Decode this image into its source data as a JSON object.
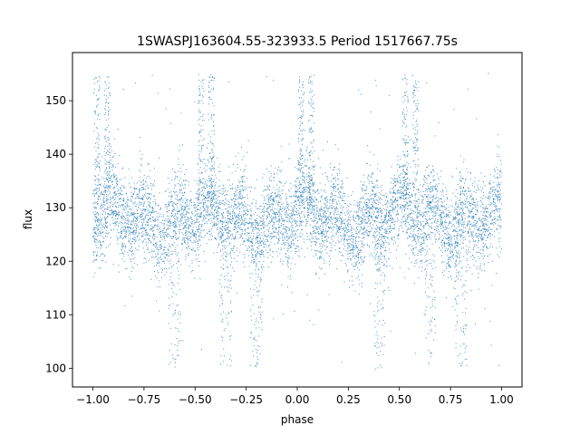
{
  "chart_data": {
    "type": "scatter",
    "title": "1SWASPJ163604.55-323933.5 Period 1517667.75s",
    "xlabel": "phase",
    "ylabel": "flux",
    "xlim": [
      -1.1,
      1.1
    ],
    "ylim": [
      96.5,
      159
    ],
    "grid": false,
    "legend": "none",
    "marker_color": "#1f77b4",
    "x_ticks": [
      -1.0,
      -0.75,
      -0.5,
      -0.25,
      0.0,
      0.25,
      0.5,
      0.75,
      1.0
    ],
    "x_tick_labels": [
      "−1.00",
      "−0.75",
      "−0.50",
      "−0.25",
      "0.00",
      "0.25",
      "0.50",
      "0.75",
      "1.00"
    ],
    "y_ticks": [
      100,
      110,
      120,
      130,
      140,
      150
    ],
    "y_tick_labels": [
      "100",
      "110",
      "120",
      "130",
      "140",
      "150"
    ],
    "series": [
      {
        "x_range": [
          -1.0,
          1.0
        ],
        "baseline_flux": 128,
        "typical_scatter": 4,
        "flare_phases": [
          -0.98,
          -0.93,
          -0.47,
          -0.42,
          0.02,
          0.07,
          0.53,
          0.58
        ],
        "flare_peak_flux": 153,
        "dip_phases": [
          -0.6,
          -0.35,
          -0.2,
          0.4,
          0.65,
          0.8
        ],
        "dip_min_flux": 100
      }
    ]
  }
}
